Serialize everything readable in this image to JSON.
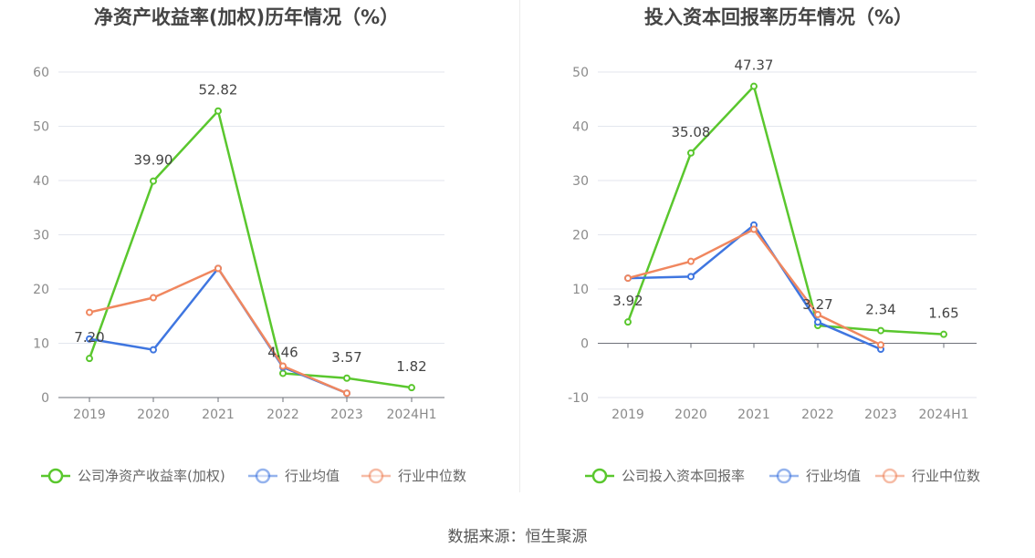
{
  "source_text": "数据来源：恒生聚源",
  "chart_data": [
    {
      "type": "line",
      "title": "净资产收益率(加权)历年情况（%）",
      "categories": [
        "2019",
        "2020",
        "2021",
        "2022",
        "2023",
        "2024H1"
      ],
      "ylim": [
        0,
        60
      ],
      "yticks": [
        0,
        10,
        20,
        30,
        40,
        50,
        60
      ],
      "grid": true,
      "legend_position": "bottom",
      "series": [
        {
          "name": "公司净资产收益率(加权)",
          "color": "#5ac72e",
          "values": [
            7.2,
            39.9,
            52.82,
            4.46,
            3.57,
            1.82
          ],
          "labels": [
            "7.20",
            "39.90",
            "52.82",
            "4.46",
            "3.57",
            "1.82"
          ]
        },
        {
          "name": "行业均值",
          "color": "#3f76e0",
          "values": [
            10.8,
            8.8,
            23.8,
            5.6,
            0.8,
            null
          ]
        },
        {
          "name": "行业中位数",
          "color": "#f0875f",
          "values": [
            15.7,
            18.4,
            23.8,
            5.8,
            0.8,
            null
          ]
        }
      ]
    },
    {
      "type": "line",
      "title": "投入资本回报率历年情况（%）",
      "categories": [
        "2019",
        "2020",
        "2021",
        "2022",
        "2023",
        "2024H1"
      ],
      "ylim": [
        -10,
        50
      ],
      "yticks": [
        -10,
        0,
        10,
        20,
        30,
        40,
        50
      ],
      "grid": true,
      "legend_position": "bottom",
      "series": [
        {
          "name": "公司投入资本回报率",
          "color": "#5ac72e",
          "values": [
            3.92,
            35.08,
            47.37,
            3.27,
            2.34,
            1.65
          ],
          "labels": [
            "3.92",
            "35.08",
            "47.37",
            "3.27",
            "2.34",
            "1.65"
          ]
        },
        {
          "name": "行业均值",
          "color": "#3f76e0",
          "values": [
            12.0,
            12.3,
            21.8,
            3.9,
            -1.1,
            null
          ]
        },
        {
          "name": "行业中位数",
          "color": "#f0875f",
          "values": [
            12.0,
            15.1,
            21.0,
            5.3,
            -0.3,
            null
          ]
        }
      ]
    }
  ]
}
